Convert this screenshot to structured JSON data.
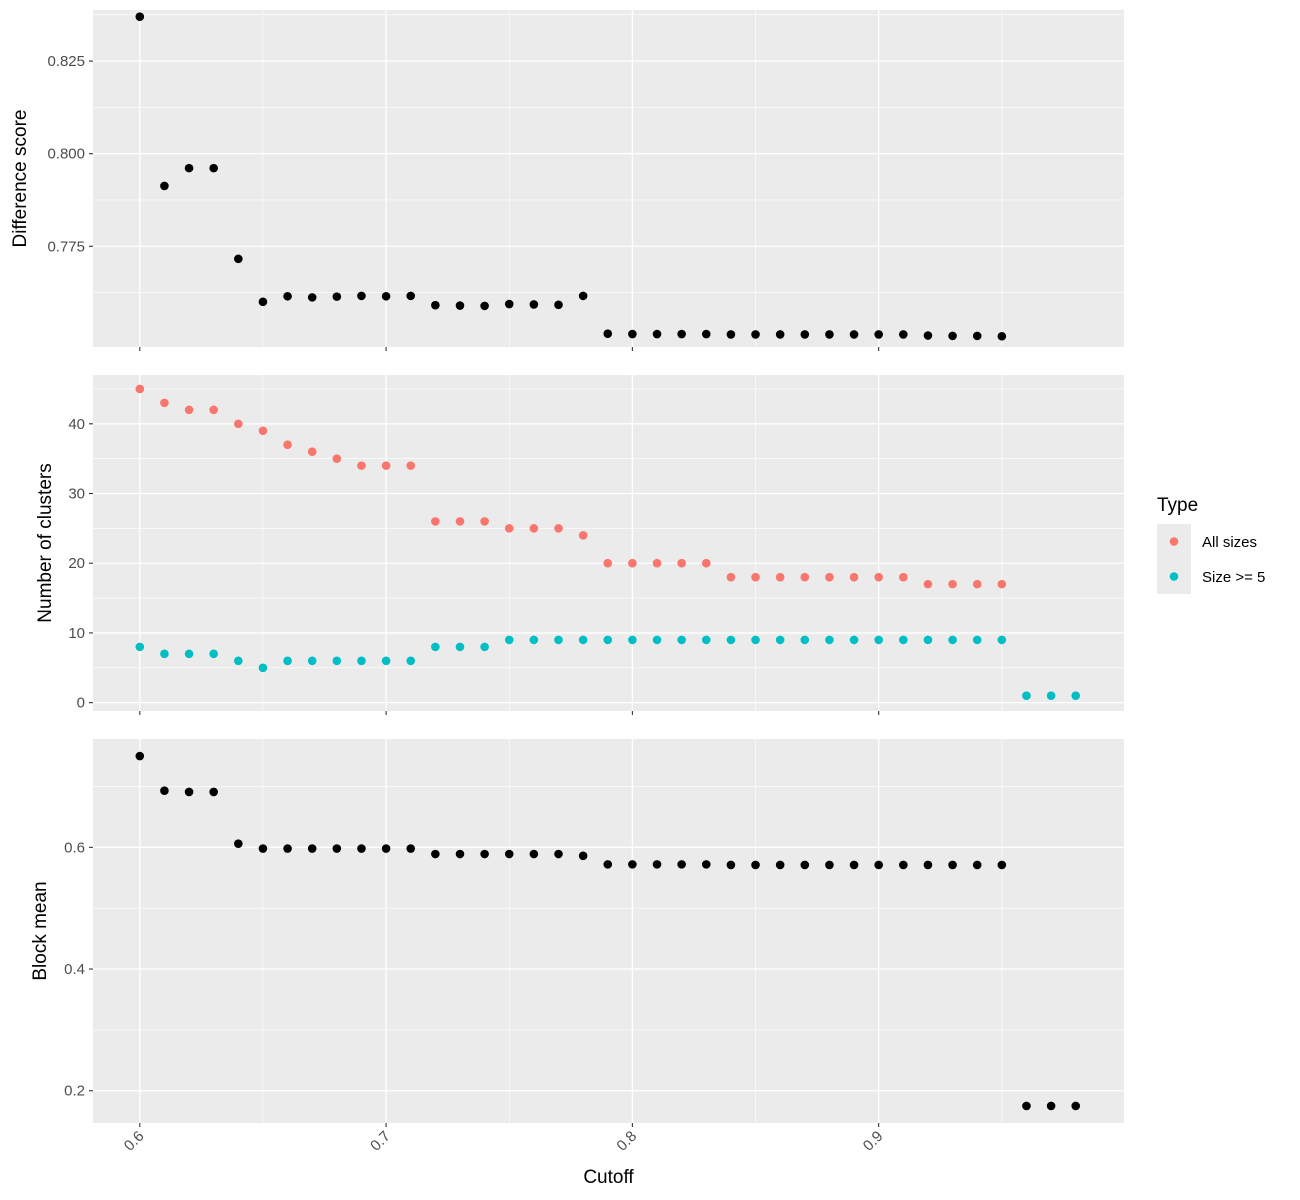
{
  "panel_bg": "#ebebeb",
  "grid_color": "#ffffff",
  "tick_color": "#333333",
  "default_point_color": "#000000",
  "legend": {
    "title": "Type",
    "items": [
      {
        "label": "All sizes",
        "color": "#f8766d"
      },
      {
        "label": "Size >= 5",
        "color": "#00bfc4"
      }
    ]
  },
  "chart_data": {
    "type": "scatter",
    "xlabel": "Cutoff",
    "x_ticks": [
      0.6,
      0.7,
      0.8,
      0.9
    ],
    "x_tick_labels": [
      "0.6",
      "0.7",
      "0.8",
      "0.9"
    ],
    "xlim": [
      0.581,
      0.9996
    ],
    "facets": [
      {
        "ylabel": "Difference score",
        "ylim": [
          0.7478,
          0.8388
        ],
        "y_ticks": [
          0.775,
          0.8,
          0.825
        ],
        "y_tick_labels": [
          "0.775",
          "0.800",
          "0.825"
        ],
        "series": [
          {
            "x": [
              0.6,
              0.61,
              0.62,
              0.63,
              0.64,
              0.65,
              0.66,
              0.67,
              0.68,
              0.69,
              0.7,
              0.71,
              0.72,
              0.73,
              0.74,
              0.75,
              0.76,
              0.77,
              0.78,
              0.79,
              0.8,
              0.81,
              0.82,
              0.83,
              0.84,
              0.85,
              0.86,
              0.87,
              0.88,
              0.89,
              0.9,
              0.91,
              0.92,
              0.93,
              0.94,
              0.95
            ],
            "y": [
              0.837,
              0.7913,
              0.7961,
              0.7961,
              0.7716,
              0.76,
              0.7615,
              0.7612,
              0.7614,
              0.7616,
              0.7615,
              0.7616,
              0.7591,
              0.759,
              0.7589,
              0.7594,
              0.7593,
              0.7592,
              0.7616,
              0.7514,
              0.7513,
              0.7513,
              0.7513,
              0.7513,
              0.7512,
              0.7512,
              0.7512,
              0.7512,
              0.7512,
              0.7512,
              0.7512,
              0.7512,
              0.7509,
              0.7508,
              0.7508,
              0.7507
            ]
          }
        ]
      },
      {
        "ylabel": "Number of clusters",
        "ylim": [
          -1.2,
          47.0
        ],
        "y_ticks": [
          0,
          10,
          20,
          30,
          40
        ],
        "y_tick_labels": [
          "0",
          "10",
          "20",
          "30",
          "40"
        ],
        "series": [
          {
            "name": "All sizes",
            "color": "#f8766d",
            "x": [
              0.6,
              0.61,
              0.62,
              0.63,
              0.64,
              0.65,
              0.66,
              0.67,
              0.68,
              0.69,
              0.7,
              0.71,
              0.72,
              0.73,
              0.74,
              0.75,
              0.76,
              0.77,
              0.78,
              0.79,
              0.8,
              0.81,
              0.82,
              0.83,
              0.84,
              0.85,
              0.86,
              0.87,
              0.88,
              0.89,
              0.9,
              0.91,
              0.92,
              0.93,
              0.94,
              0.95
            ],
            "y": [
              45,
              43,
              42,
              42,
              40,
              39,
              37,
              36,
              35,
              34,
              34,
              34,
              26,
              26,
              26,
              25,
              25,
              25,
              24,
              20,
              20,
              20,
              20,
              20,
              18,
              18,
              18,
              18,
              18,
              18,
              18,
              18,
              17,
              17,
              17,
              17
            ]
          },
          {
            "name": "Size >= 5",
            "color": "#00bfc4",
            "x": [
              0.6,
              0.61,
              0.62,
              0.63,
              0.64,
              0.65,
              0.66,
              0.67,
              0.68,
              0.69,
              0.7,
              0.71,
              0.72,
              0.73,
              0.74,
              0.75,
              0.76,
              0.77,
              0.78,
              0.79,
              0.8,
              0.81,
              0.82,
              0.83,
              0.84,
              0.85,
              0.86,
              0.87,
              0.88,
              0.89,
              0.9,
              0.91,
              0.92,
              0.93,
              0.94,
              0.95,
              0.96,
              0.97,
              0.98
            ],
            "y": [
              8,
              7,
              7,
              7,
              6,
              5,
              6,
              6,
              6,
              6,
              6,
              6,
              8,
              8,
              8,
              9,
              9,
              9,
              9,
              9,
              9,
              9,
              9,
              9,
              9,
              9,
              9,
              9,
              9,
              9,
              9,
              9,
              9,
              9,
              9,
              9,
              1,
              1,
              1
            ]
          }
        ]
      },
      {
        "ylabel": "Block mean",
        "ylim": [
          0.147,
          0.778
        ],
        "y_ticks": [
          0.2,
          0.4,
          0.6
        ],
        "y_tick_labels": [
          "0.2",
          "0.4",
          "0.6"
        ],
        "series": [
          {
            "x": [
              0.6,
              0.61,
              0.62,
              0.63,
              0.64,
              0.65,
              0.66,
              0.67,
              0.68,
              0.69,
              0.7,
              0.71,
              0.72,
              0.73,
              0.74,
              0.75,
              0.76,
              0.77,
              0.78,
              0.79,
              0.8,
              0.81,
              0.82,
              0.83,
              0.84,
              0.85,
              0.86,
              0.87,
              0.88,
              0.89,
              0.9,
              0.91,
              0.92,
              0.93,
              0.94,
              0.95,
              0.96,
              0.97,
              0.98
            ],
            "y": [
              0.75,
              0.693,
              0.691,
              0.691,
              0.606,
              0.598,
              0.598,
              0.598,
              0.598,
              0.598,
              0.598,
              0.598,
              0.589,
              0.589,
              0.589,
              0.589,
              0.589,
              0.589,
              0.586,
              0.572,
              0.572,
              0.572,
              0.572,
              0.572,
              0.571,
              0.571,
              0.571,
              0.571,
              0.571,
              0.571,
              0.571,
              0.571,
              0.571,
              0.571,
              0.571,
              0.571,
              0.175,
              0.175,
              0.175
            ]
          }
        ]
      }
    ]
  }
}
